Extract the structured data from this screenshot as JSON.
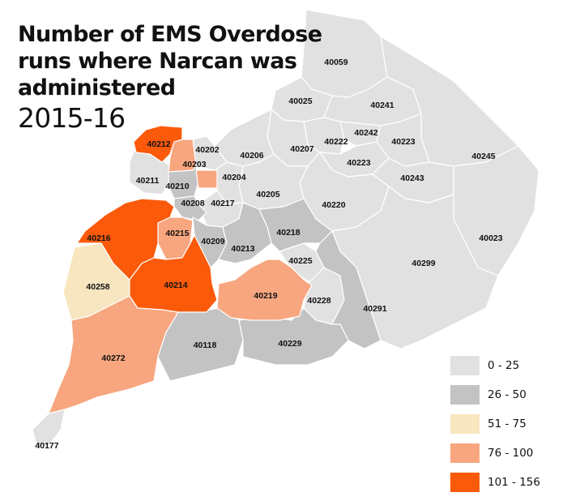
{
  "title": {
    "lines": [
      "Number of EMS Overdose",
      "runs where Narcan was",
      "administered"
    ],
    "years": "2015-16"
  },
  "colors": {
    "bin_0_25": "#e1e1e1",
    "bin_26_50": "#c3c3c3",
    "bin_51_75": "#f7e6bf",
    "bin_76_100": "#f7a67f",
    "bin_101_156": "#fb5a0b",
    "border": "#ffffff"
  },
  "legend": [
    {
      "label": "0 - 25",
      "bin": "bin_0_25"
    },
    {
      "label": "26 - 50",
      "bin": "bin_26_50"
    },
    {
      "label": "51 - 75",
      "bin": "bin_51_75"
    },
    {
      "label": "76 - 100",
      "bin": "bin_76_100"
    },
    {
      "label": "101 - 156",
      "bin": "bin_101_156"
    }
  ],
  "zip_codes": [
    {
      "zip": "40059",
      "bin": "bin_0_25"
    },
    {
      "zip": "40025",
      "bin": "bin_0_25"
    },
    {
      "zip": "40241",
      "bin": "bin_0_25"
    },
    {
      "zip": "40242",
      "bin": "bin_0_25"
    },
    {
      "zip": "40222",
      "bin": "bin_0_25"
    },
    {
      "zip": "40223",
      "bin": "bin_0_25"
    },
    {
      "zip": "40207",
      "bin": "bin_0_25"
    },
    {
      "zip": "40206",
      "bin": "bin_0_25"
    },
    {
      "zip": "40245",
      "bin": "bin_0_25"
    },
    {
      "zip": "40243",
      "bin": "bin_0_25"
    },
    {
      "zip": "40220",
      "bin": "bin_0_25"
    },
    {
      "zip": "40205",
      "bin": "bin_0_25"
    },
    {
      "zip": "40204",
      "bin": "bin_0_25"
    },
    {
      "zip": "40023",
      "bin": "bin_0_25"
    },
    {
      "zip": "40299",
      "bin": "bin_0_25"
    },
    {
      "zip": "40217",
      "bin": "bin_0_25"
    },
    {
      "zip": "40211",
      "bin": "bin_0_25"
    },
    {
      "zip": "40202",
      "bin": "bin_0_25"
    },
    {
      "zip": "40210",
      "bin": "bin_26_50"
    },
    {
      "zip": "40208",
      "bin": "bin_26_50"
    },
    {
      "zip": "40213",
      "bin": "bin_26_50"
    },
    {
      "zip": "40218",
      "bin": "bin_26_50"
    },
    {
      "zip": "40209",
      "bin": "bin_26_50"
    },
    {
      "zip": "40225",
      "bin": "bin_0_25"
    },
    {
      "zip": "40228",
      "bin": "bin_0_25"
    },
    {
      "zip": "40291",
      "bin": "bin_26_50"
    },
    {
      "zip": "40118",
      "bin": "bin_26_50"
    },
    {
      "zip": "40229",
      "bin": "bin_26_50"
    },
    {
      "zip": "40177",
      "bin": "bin_0_25"
    },
    {
      "zip": "40258",
      "bin": "bin_51_75"
    },
    {
      "zip": "40203",
      "bin": "bin_76_100"
    },
    {
      "zip": "40215",
      "bin": "bin_76_100"
    },
    {
      "zip": "40219",
      "bin": "bin_76_100"
    },
    {
      "zip": "40272",
      "bin": "bin_76_100"
    },
    {
      "zip": "40212",
      "bin": "bin_101_156"
    },
    {
      "zip": "40216",
      "bin": "bin_101_156"
    },
    {
      "zip": "40214",
      "bin": "bin_101_156"
    }
  ]
}
